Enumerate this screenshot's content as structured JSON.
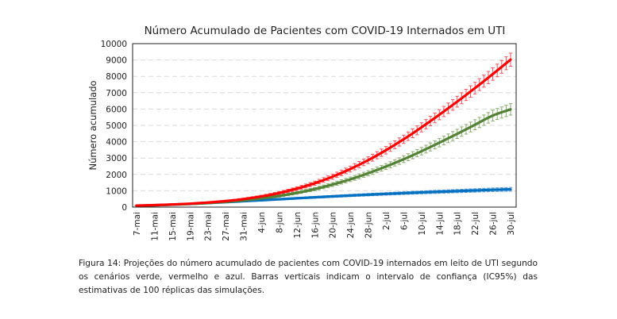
{
  "chart_data": {
    "type": "line",
    "title": "Número Acumulado de Pacientes com COVID-19 Internados em UTI",
    "xlabel": "",
    "ylabel": "Número acumulado",
    "ylim": [
      0,
      10000
    ],
    "yticks": [
      0,
      1000,
      2000,
      3000,
      4000,
      5000,
      6000,
      7000,
      8000,
      9000,
      10000
    ],
    "grid": "horizontal-dashed",
    "legend": "none",
    "categories": [
      "7-mai",
      "11-mai",
      "15-mai",
      "19-mai",
      "23-mai",
      "27-mai",
      "31-mai",
      "4-jun",
      "8-jun",
      "12-jun",
      "16-jun",
      "20-jun",
      "24-jun",
      "28-jun",
      "2-jul",
      "6-jul",
      "10-jul",
      "14-jul",
      "18-jul",
      "22-jul",
      "26-jul",
      "30-jul"
    ],
    "series": [
      {
        "name": "vermelho",
        "color": "#ff0000",
        "errcolor": "#f0545c",
        "values": [
          90,
          120,
          160,
          210,
          280,
          370,
          490,
          650,
          860,
          1130,
          1460,
          1860,
          2330,
          2870,
          3480,
          4150,
          4880,
          5650,
          6450,
          7280,
          8140,
          9020
        ],
        "ci_halfwidth": [
          15,
          20,
          25,
          30,
          40,
          50,
          60,
          75,
          90,
          110,
          130,
          155,
          180,
          205,
          230,
          255,
          280,
          305,
          330,
          355,
          380,
          400
        ]
      },
      {
        "name": "verde",
        "color": "#538135",
        "errcolor": "#8aad6e",
        "values": [
          90,
          115,
          150,
          195,
          250,
          320,
          410,
          530,
          680,
          870,
          1100,
          1380,
          1700,
          2070,
          2480,
          2930,
          3420,
          3940,
          4480,
          5040,
          5600,
          5980
        ],
        "ci_halfwidth": [
          15,
          18,
          22,
          27,
          33,
          40,
          50,
          60,
          72,
          85,
          100,
          120,
          140,
          160,
          180,
          205,
          230,
          255,
          280,
          305,
          330,
          350
        ]
      },
      {
        "name": "azul",
        "color": "#0070c0",
        "errcolor": "#5b9bd5",
        "values": [
          80,
          110,
          150,
          195,
          245,
          300,
          360,
          420,
          480,
          540,
          600,
          655,
          710,
          760,
          810,
          855,
          900,
          940,
          980,
          1020,
          1060,
          1090
        ],
        "ci_halfwidth": [
          10,
          15,
          20,
          25,
          30,
          35,
          40,
          45,
          50,
          55,
          60,
          65,
          70,
          75,
          80,
          85,
          90,
          95,
          100,
          105,
          110,
          115
        ]
      }
    ]
  },
  "caption": "Figura 14: Projeções do número acumulado de pacientes com COVID-19 internados em leito de UTI segundo os cenários verde, vermelho e azul. Barras verticais indicam o intervalo de confiança (IC95%) das estimativas de 100 réplicas das simulações."
}
